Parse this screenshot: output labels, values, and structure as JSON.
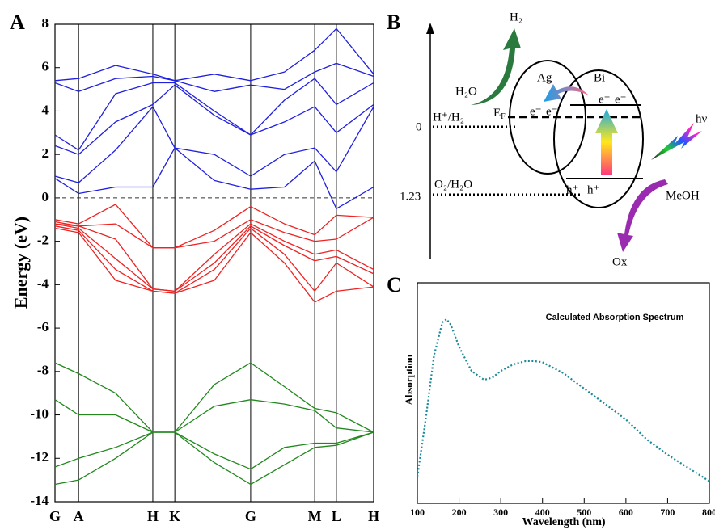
{
  "chart_data": [
    {
      "type": "line",
      "panel": "A",
      "ylabel": "Energy (eV)",
      "x": [
        0,
        7.4,
        19,
        30.7,
        37.6,
        50,
        61.4,
        72,
        81.5,
        88.3,
        100
      ],
      "xlim": [
        0,
        100
      ],
      "xticks": [
        {
          "value": 0,
          "label": "G"
        },
        {
          "value": 7.4,
          "label": "A"
        },
        {
          "value": 30.7,
          "label": "H"
        },
        {
          "value": 37.6,
          "label": "K"
        },
        {
          "value": 61.4,
          "label": "G"
        },
        {
          "value": 81.5,
          "label": "M"
        },
        {
          "value": 88.3,
          "label": "L"
        },
        {
          "value": 100,
          "label": "H"
        }
      ],
      "ylim": [
        -14,
        8
      ],
      "yticks": [
        -14,
        -12,
        -10,
        -8,
        -6,
        -4,
        -2,
        0,
        2,
        4,
        6,
        8
      ],
      "hline": 0,
      "vlines": true,
      "line_style": "solid",
      "series": [
        {
          "color": "#1f1fe0",
          "values": [
            0.9,
            0.2,
            0.5,
            0.5,
            2.3,
            0.8,
            0.4,
            0.5,
            1.7,
            -0.5,
            0.5
          ]
        },
        {
          "color": "#1f1fe0",
          "values": [
            1.0,
            0.7,
            2.2,
            4.2,
            2.3,
            2.0,
            1.0,
            2.0,
            2.3,
            1.2,
            4.2
          ]
        },
        {
          "color": "#1f1fe0",
          "values": [
            2.4,
            2.0,
            3.5,
            4.3,
            5.2,
            3.8,
            2.9,
            3.5,
            4.2,
            3.0,
            4.3
          ]
        },
        {
          "color": "#1f1fe0",
          "values": [
            2.9,
            2.2,
            4.8,
            5.3,
            5.3,
            4.0,
            2.9,
            4.5,
            5.5,
            4.3,
            5.3
          ]
        },
        {
          "color": "#1f1fe0",
          "values": [
            5.3,
            4.9,
            5.5,
            5.6,
            5.4,
            4.9,
            5.2,
            5.0,
            5.8,
            6.2,
            5.6
          ]
        },
        {
          "color": "#1f1fe0",
          "values": [
            5.4,
            5.5,
            6.1,
            5.7,
            5.4,
            5.7,
            5.4,
            5.8,
            6.8,
            7.8,
            5.7
          ]
        },
        {
          "color": "#ee2222",
          "values": [
            -1.0,
            -1.2,
            -0.3,
            -2.3,
            -2.3,
            -1.5,
            -0.4,
            -1.2,
            -1.7,
            -0.8,
            -0.9
          ]
        },
        {
          "color": "#ee2222",
          "values": [
            -1.1,
            -1.3,
            -1.2,
            -2.3,
            -2.3,
            -2.0,
            -1.0,
            -1.6,
            -2.0,
            -1.9,
            -0.9
          ]
        },
        {
          "color": "#ee2222",
          "values": [
            -1.2,
            -1.3,
            -1.9,
            -4.2,
            -4.3,
            -2.6,
            -1.2,
            -2.0,
            -2.6,
            -2.4,
            -3.3
          ]
        },
        {
          "color": "#ee2222",
          "values": [
            -1.2,
            -1.4,
            -2.8,
            -4.2,
            -4.3,
            -3.0,
            -1.3,
            -2.2,
            -2.9,
            -2.7,
            -3.5
          ]
        },
        {
          "color": "#ee2222",
          "values": [
            -1.3,
            -1.5,
            -3.3,
            -4.3,
            -4.4,
            -3.3,
            -1.4,
            -2.6,
            -4.3,
            -3.0,
            -4.1
          ]
        },
        {
          "color": "#ee2222",
          "values": [
            -1.4,
            -1.6,
            -3.8,
            -4.3,
            -4.4,
            -3.8,
            -1.6,
            -3.0,
            -4.8,
            -4.3,
            -4.1
          ]
        },
        {
          "color": "#22881e",
          "values": [
            -7.6,
            -8.1,
            -9.0,
            -10.8,
            -10.8,
            -8.6,
            -7.6,
            -8.7,
            -9.7,
            -9.9,
            -10.8
          ]
        },
        {
          "color": "#22881e",
          "values": [
            -9.3,
            -10.0,
            -10.0,
            -10.8,
            -10.8,
            -9.6,
            -9.3,
            -9.5,
            -9.8,
            -10.6,
            -10.8
          ]
        },
        {
          "color": "#22881e",
          "values": [
            -12.4,
            -12.0,
            -11.5,
            -10.8,
            -10.8,
            -11.8,
            -12.5,
            -11.5,
            -11.3,
            -11.3,
            -10.8
          ]
        },
        {
          "color": "#22881e",
          "values": [
            -13.2,
            -13.0,
            -12.0,
            -10.8,
            -10.8,
            -12.2,
            -13.2,
            -12.3,
            -11.5,
            -11.4,
            -10.8
          ]
        }
      ]
    },
    {
      "type": "line",
      "panel": "C",
      "title": "Calculated Absorption Spectrum",
      "xlabel": "Wavelength (nm)",
      "ylabel": "Absorption",
      "x": [
        100,
        120,
        140,
        160,
        170,
        180,
        200,
        230,
        260,
        280,
        300,
        330,
        360,
        380,
        400,
        450,
        500,
        550,
        600,
        650,
        700,
        750,
        800
      ],
      "xlim": [
        100,
        800
      ],
      "xticks": [
        100,
        200,
        300,
        400,
        500,
        600,
        700,
        800
      ],
      "ylim": [
        0,
        1
      ],
      "line_style": "dotted",
      "series": [
        {
          "color": "#1b8a98",
          "values": [
            0.12,
            0.38,
            0.67,
            0.82,
            0.835,
            0.81,
            0.71,
            0.6,
            0.56,
            0.57,
            0.6,
            0.63,
            0.645,
            0.645,
            0.64,
            0.59,
            0.52,
            0.45,
            0.38,
            0.29,
            0.22,
            0.16,
            0.1
          ]
        }
      ]
    }
  ],
  "panel_b": {
    "label": "B",
    "h2": "H₂",
    "ag": "Ag",
    "bi": "Bi",
    "h2o": "H₂O",
    "h_couple": "H⁺/H₂",
    "zero": "0",
    "ef": {
      "main": "E",
      "sub": "F"
    },
    "electrons": [
      "e⁻",
      "e⁻",
      "e⁻",
      "e⁻"
    ],
    "hv": "hν",
    "o_couple": "O₂/H₂O",
    "potential": "1.23",
    "holes": [
      "h⁺",
      "h⁺"
    ],
    "meoh": "MeOH",
    "ox": "Ox"
  }
}
